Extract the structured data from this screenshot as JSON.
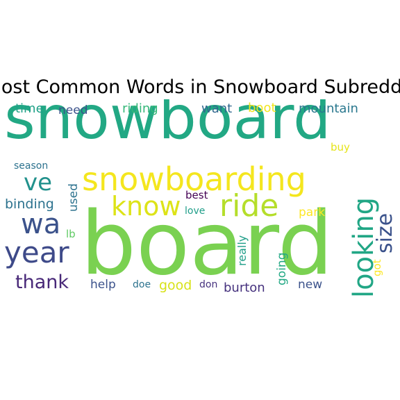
{
  "title": "Most Common Words in Snowboard Subreddit",
  "words": {
    "snowboard": "snowboard",
    "board": "board",
    "snowboarding": "snowboarding",
    "ride": "ride",
    "know": "know",
    "looking": "looking",
    "wa": "wa",
    "year": "year",
    "ve": "ve",
    "thank": "thank",
    "size": "size",
    "time": "time",
    "need": "need",
    "riding": "riding",
    "want": "want",
    "boot": "boot",
    "mountain": "mountain",
    "buy": "buy",
    "season": "season",
    "used": "used",
    "binding": "binding",
    "best": "best",
    "love": "love",
    "park": "park",
    "lb": "lb",
    "really": "really",
    "going": "going",
    "got": "got",
    "help": "help",
    "doe": "doe",
    "good": "good",
    "don": "don",
    "burton": "burton",
    "new": "new"
  },
  "colors": {
    "background": "#ffffff",
    "title": "#000000",
    "palette": "viridis"
  }
}
